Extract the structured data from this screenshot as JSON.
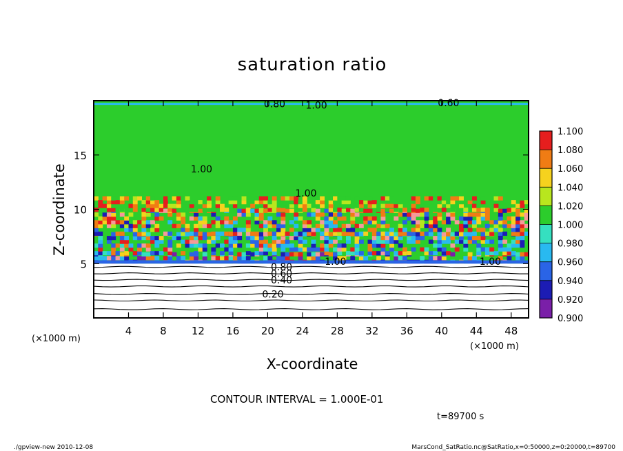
{
  "chart_data": {
    "type": "heatmap",
    "title": "saturation ratio",
    "xlabel": "X-coordinate",
    "ylabel": "Z-coordinate",
    "x_unit_label": "(×1000 m)",
    "y_unit_label": "(×1000 m)",
    "xlim": [
      0,
      50
    ],
    "ylim": [
      0,
      20
    ],
    "x_ticks": [
      4,
      8,
      12,
      16,
      20,
      24,
      28,
      32,
      36,
      40,
      44,
      48
    ],
    "y_ticks": [
      5,
      10,
      15
    ],
    "colorbar": {
      "levels": [
        0.9,
        0.92,
        0.94,
        0.96,
        0.98,
        1.0,
        1.02,
        1.04,
        1.06,
        1.08,
        1.1
      ],
      "labels": [
        "0.900",
        "0.920",
        "0.940",
        "0.960",
        "0.980",
        "1.000",
        "1.020",
        "1.040",
        "1.060",
        "1.080",
        "1.100"
      ],
      "colors": [
        "#7a1fa8",
        "#1c1cb4",
        "#2a64e6",
        "#29b9f0",
        "#35e0c0",
        "#2ccd2c",
        "#b8e61e",
        "#f6d21e",
        "#f07c14",
        "#e61e1e",
        "#f59a9a"
      ]
    },
    "contour_labels": [
      {
        "text": "0.20",
        "x": 20.6,
        "z": 2.2
      },
      {
        "text": "0.40",
        "x": 21.6,
        "z": 3.5
      },
      {
        "text": "0.60",
        "x": 21.6,
        "z": 4.1
      },
      {
        "text": "0.80",
        "x": 21.6,
        "z": 4.7
      },
      {
        "text": "1.00",
        "x": 27.8,
        "z": 5.2
      },
      {
        "text": "1.00",
        "x": 45.6,
        "z": 5.2
      },
      {
        "text": "1.00",
        "x": 12.4,
        "z": 13.7
      },
      {
        "text": "1.00",
        "x": 24.4,
        "z": 11.5
      },
      {
        "text": "0.80",
        "x": 20.8,
        "z": 19.7
      },
      {
        "text": "1.00",
        "x": 25.6,
        "z": 19.6
      },
      {
        "text": "0.60",
        "x": 40.8,
        "z": 19.8
      }
    ],
    "horizontal_isolines_z": [
      0.8,
      1.6,
      2.2,
      2.9,
      3.5,
      4.1,
      4.7
    ]
  },
  "contour_interval": "CONTOUR INTERVAL = 1.000E-01",
  "time_label": "t=89700 s",
  "footer_left": "./gpview-new  2010-12-08",
  "footer_right": "MarsCond_SatRatio.nc@SatRatio,x=0:50000,z=0:20000,t=89700"
}
